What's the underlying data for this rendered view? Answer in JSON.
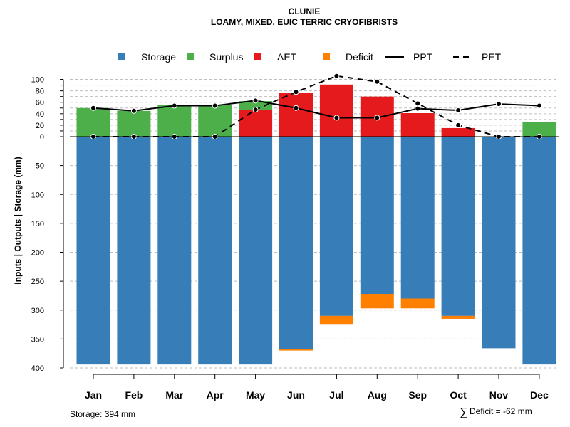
{
  "chart_data": {
    "type": "bar",
    "title": "CLUNIE",
    "subtitle": "LOAMY, MIXED, EUIC TERRIC CRYOFIBRISTS",
    "ylabel": "Inputs | Outputs | Storage     (mm)",
    "categories": [
      "Jan",
      "Feb",
      "Mar",
      "Apr",
      "May",
      "Jun",
      "Jul",
      "Aug",
      "Sep",
      "Oct",
      "Nov",
      "Dec"
    ],
    "ylim_top": [
      0,
      110
    ],
    "ylim_bottom": [
      0,
      400
    ],
    "yticks_top": [
      0,
      10,
      20,
      30,
      40,
      50,
      60,
      70,
      80,
      90,
      100
    ],
    "ytick_labels_top": [
      "0",
      "20",
      "40",
      "60",
      "80",
      "100"
    ],
    "ytick_values_top": [
      0,
      20,
      40,
      60,
      80,
      100
    ],
    "yticks_bottom": [
      0,
      50,
      100,
      150,
      200,
      250,
      300,
      350,
      400
    ],
    "ytick_labels_bottom": [
      "0",
      "50",
      "100",
      "150",
      "200",
      "250",
      "300",
      "350",
      "400"
    ],
    "legend": [
      {
        "name": "Storage",
        "type": "box",
        "color": "#377EB8"
      },
      {
        "name": "Surplus",
        "type": "box",
        "color": "#4DAF4A"
      },
      {
        "name": "AET",
        "type": "box",
        "color": "#E41A1C"
      },
      {
        "name": "Deficit",
        "type": "box",
        "color": "#FF7F00"
      },
      {
        "name": "PPT",
        "type": "solid"
      },
      {
        "name": "PET",
        "type": "dashed"
      }
    ],
    "series": {
      "storage": [
        394,
        394,
        394,
        394,
        394,
        368,
        310,
        272,
        280,
        310,
        366,
        394
      ],
      "deficit": [
        0,
        0,
        0,
        0,
        0,
        2,
        14,
        25,
        17,
        5,
        0,
        0
      ],
      "surplus": [
        50,
        45,
        55,
        55,
        15,
        0,
        0,
        0,
        0,
        0,
        0,
        26
      ],
      "aet": [
        0,
        0,
        0,
        0,
        47,
        77,
        91,
        70,
        41,
        15,
        0,
        0
      ],
      "ppt": [
        50,
        45,
        54,
        54,
        63,
        50,
        33,
        33,
        49,
        46,
        57,
        54
      ],
      "pet": [
        0,
        0,
        0,
        0,
        47,
        78,
        106,
        96,
        58,
        20,
        0,
        0
      ]
    },
    "colors": {
      "storage": "#377EB8",
      "surplus": "#4DAF4A",
      "aet": "#E41A1C",
      "deficit": "#FF7F00",
      "grid": "#BEBEBE"
    }
  },
  "footer": {
    "storage_label": "Storage: 394 mm",
    "deficit_symbol": "∑",
    "deficit_label": "Deficit = -62 mm"
  }
}
